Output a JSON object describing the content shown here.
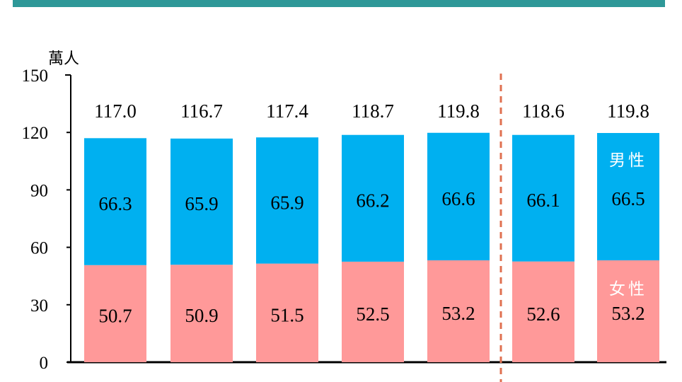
{
  "colors": {
    "header": "#2e9898",
    "male": "#00b0f0",
    "female": "#ff9999",
    "divider": "#e07050"
  },
  "chart_data": {
    "type": "bar",
    "stacked": true,
    "ylabel": "萬人",
    "ylim": [
      0,
      150
    ],
    "yticks": [
      0,
      30,
      60,
      90,
      120,
      150
    ],
    "categories": [
      "",
      "",
      "",
      "",
      "",
      "",
      ""
    ],
    "series": [
      {
        "name": "女性",
        "values": [
          50.7,
          50.9,
          51.5,
          52.5,
          53.2,
          52.6,
          53.2
        ]
      },
      {
        "name": "男性",
        "values": [
          66.3,
          65.9,
          65.9,
          66.2,
          66.6,
          66.1,
          66.5
        ]
      }
    ],
    "totals": [
      "117.0",
      "116.7",
      "117.4",
      "118.7",
      "119.8",
      "118.6",
      "119.8"
    ],
    "divider_after_index": 4,
    "grid": false
  }
}
